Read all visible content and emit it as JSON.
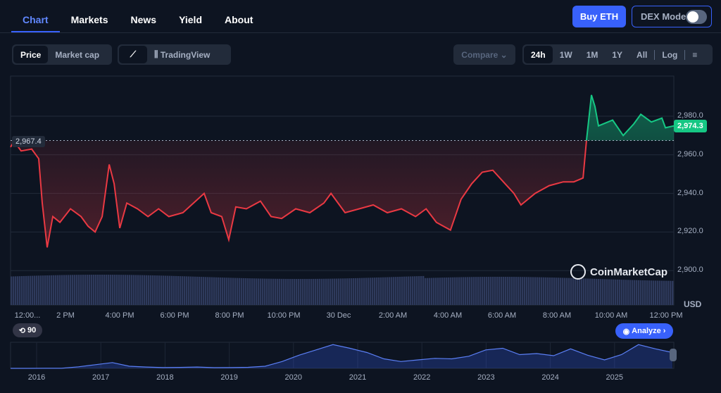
{
  "nav": {
    "tabs": [
      "Chart",
      "Markets",
      "News",
      "Yield",
      "About"
    ],
    "active": "Chart",
    "buy_label": "Buy ETH",
    "dex_label": "DEX Mode",
    "dex_on": false
  },
  "toolbar": {
    "price": "Price",
    "market_cap": "Market cap",
    "tradingview": "TradingView",
    "compare": "Compare",
    "ranges": [
      "24h",
      "1W",
      "1M",
      "1Y",
      "All"
    ],
    "active_range": "24h",
    "log": "Log"
  },
  "chart_data": {
    "type": "line",
    "ylabel": "USD",
    "ylim": [
      2895,
      3000
    ],
    "y_ticks": [
      "2,980.0",
      "2,960.0",
      "2,940.0",
      "2,920.0",
      "2,900.0"
    ],
    "y_tick_values": [
      2980,
      2960,
      2940,
      2920,
      2900
    ],
    "x_ticks": [
      "12:00...",
      "2 PM",
      "4:00 PM",
      "6:00 PM",
      "8:00 PM",
      "10:00 PM",
      "30 Dec",
      "2:00 AM",
      "4:00 AM",
      "6:00 AM",
      "8:00 AM",
      "10:00 AM",
      "12:00 PM"
    ],
    "open_price": 2967.4,
    "open_label": "2,967.4",
    "current_label": "2,974.3",
    "points": [
      [
        -0.52,
        2964
      ],
      [
        -0.39,
        2967
      ],
      [
        -0.13,
        2962
      ],
      [
        0.26,
        2963
      ],
      [
        0.52,
        2958
      ],
      [
        0.65,
        2935
      ],
      [
        0.83,
        2912
      ],
      [
        1.04,
        2928
      ],
      [
        1.3,
        2925
      ],
      [
        1.69,
        2932
      ],
      [
        2.08,
        2928
      ],
      [
        2.34,
        2923
      ],
      [
        2.6,
        2920
      ],
      [
        2.86,
        2928
      ],
      [
        3.12,
        2955
      ],
      [
        3.3,
        2945
      ],
      [
        3.51,
        2922
      ],
      [
        3.77,
        2935
      ],
      [
        4.16,
        2932
      ],
      [
        4.55,
        2928
      ],
      [
        4.94,
        2932
      ],
      [
        5.32,
        2928
      ],
      [
        5.84,
        2930
      ],
      [
        6.23,
        2935
      ],
      [
        6.62,
        2940
      ],
      [
        6.88,
        2930
      ],
      [
        7.27,
        2928
      ],
      [
        7.53,
        2916
      ],
      [
        7.79,
        2933
      ],
      [
        8.18,
        2932
      ],
      [
        8.7,
        2936
      ],
      [
        9.09,
        2928
      ],
      [
        9.48,
        2927
      ],
      [
        10.0,
        2932
      ],
      [
        10.52,
        2930
      ],
      [
        11.04,
        2935
      ],
      [
        11.3,
        2940
      ],
      [
        11.82,
        2930
      ],
      [
        12.34,
        2932
      ],
      [
        12.86,
        2934
      ],
      [
        13.38,
        2930
      ],
      [
        13.9,
        2932
      ],
      [
        14.42,
        2928
      ],
      [
        14.81,
        2932
      ],
      [
        15.19,
        2925
      ],
      [
        15.71,
        2921
      ],
      [
        16.1,
        2937
      ],
      [
        16.49,
        2945
      ],
      [
        16.88,
        2951
      ],
      [
        17.27,
        2952
      ],
      [
        17.66,
        2946
      ],
      [
        18.05,
        2940
      ],
      [
        18.31,
        2934
      ],
      [
        18.83,
        2940
      ],
      [
        19.35,
        2944
      ],
      [
        19.87,
        2946
      ],
      [
        20.26,
        2946
      ],
      [
        20.6,
        2948
      ],
      [
        20.73,
        2968
      ],
      [
        20.91,
        2991
      ],
      [
        21.04,
        2985
      ],
      [
        21.17,
        2975
      ],
      [
        21.69,
        2978
      ],
      [
        22.08,
        2970
      ],
      [
        22.47,
        2976
      ],
      [
        22.73,
        2981
      ],
      [
        23.12,
        2977
      ],
      [
        23.51,
        2979
      ],
      [
        23.64,
        2974
      ],
      [
        23.95,
        2975
      ]
    ],
    "colors": {
      "up": "#16c784",
      "down": "#ea3943"
    },
    "navigator": {
      "years": [
        "2016",
        "2017",
        "2018",
        "2019",
        "2020",
        "2021",
        "2022",
        "2023",
        "2024",
        "2025"
      ],
      "values": [
        1,
        2,
        8,
        20,
        300,
        700,
        1100,
        400,
        250,
        150,
        180,
        250,
        130,
        150,
        200,
        400,
        1300,
        2500,
        3500,
        4500,
        3800,
        3000,
        1800,
        1300,
        1600,
        1900,
        1800,
        2300,
        3500,
        3800,
        2600,
        2800,
        2400,
        3700,
        2500,
        1600,
        2600,
        4500,
        3700,
        3000
      ]
    },
    "history_label": "90",
    "analyze_label": "Analyze",
    "brand": "CoinMarketCap"
  }
}
